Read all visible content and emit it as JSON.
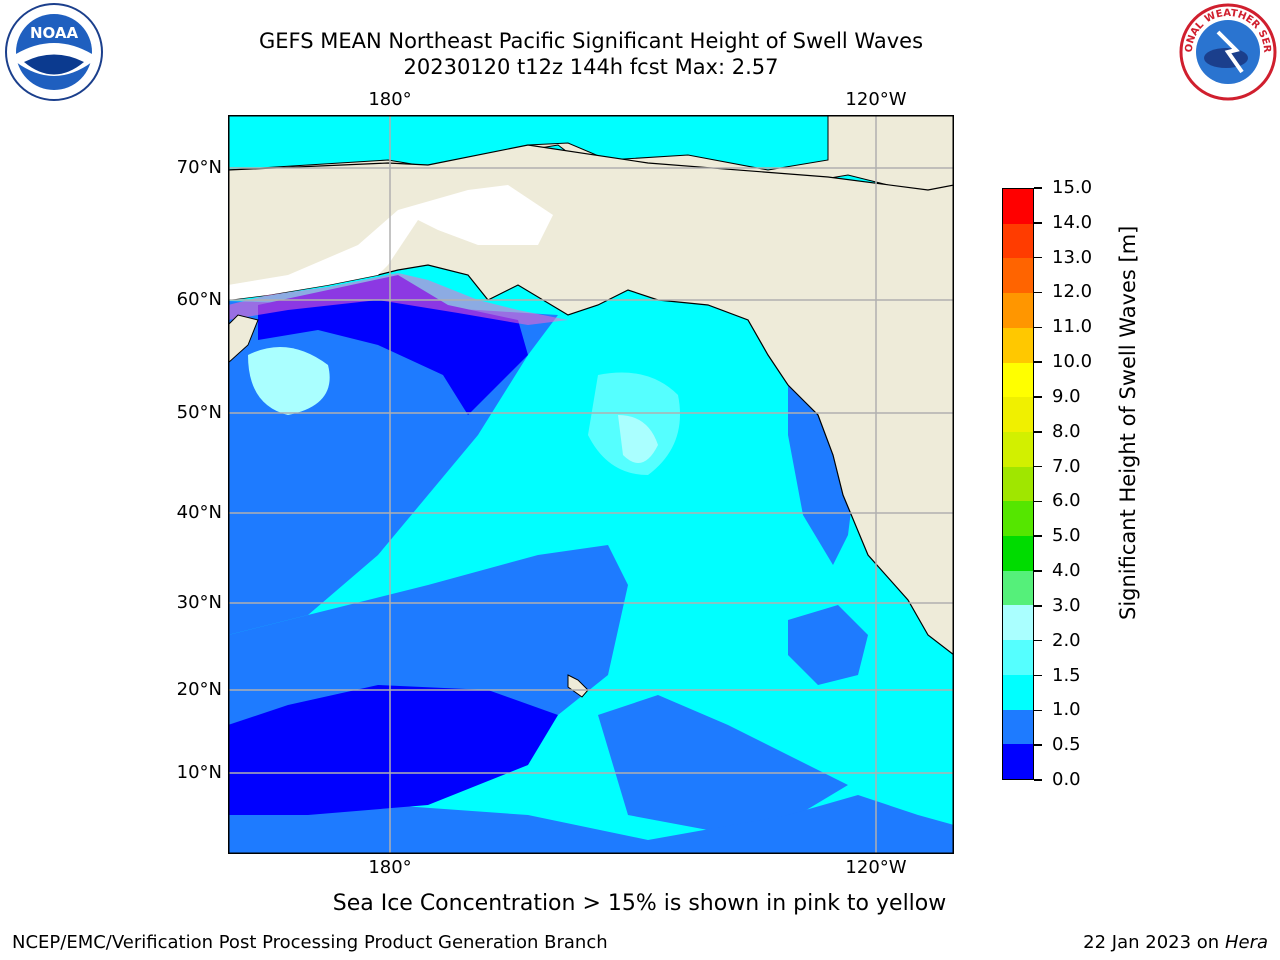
{
  "title": {
    "line1": "GEFS MEAN Northeast Pacific Significant Height of Swell Waves",
    "line2": "20230120 t12z 144h fcst   Max: 2.57"
  },
  "logos": {
    "left": {
      "icon": "noaa-logo",
      "text": "NOAA"
    },
    "right": {
      "icon": "nws-logo",
      "text": "NATIONAL WEATHER SERVICE"
    }
  },
  "map": {
    "lon_labels_top": [
      "180°",
      "120°W"
    ],
    "lon_labels_bottom": [
      "180°",
      "120°W"
    ],
    "lat_labels": [
      "70°N",
      "60°N",
      "50°N",
      "40°N",
      "30°N",
      "20°N",
      "10°N"
    ],
    "grid": true,
    "land_color": "#eeebd9",
    "ice_note": "Sea Ice Concentration > 15% is shown in pink to yellow"
  },
  "colorbar": {
    "label": "Significant Height of Swell Waves [m]",
    "ticks": [
      "0.0",
      "0.5",
      "1.0",
      "1.5",
      "2.0",
      "3.0",
      "4.0",
      "5.0",
      "6.0",
      "7.0",
      "8.0",
      "9.0",
      "10.0",
      "11.0",
      "12.0",
      "13.0",
      "14.0",
      "15.0"
    ],
    "colors": [
      "#0000ff",
      "#1e7bff",
      "#00ffff",
      "#55ffff",
      "#aaffff",
      "#55f07a",
      "#00dc00",
      "#55e600",
      "#a0e600",
      "#d2f000",
      "#f0f000",
      "#ffff00",
      "#ffc800",
      "#ff9600",
      "#ff6400",
      "#ff3c00",
      "#ff0000"
    ]
  },
  "footer": {
    "left": "NCEP/EMC/Verification Post Processing Product Generation Branch",
    "right_date": "22 Jan 2023 on",
    "right_host": "Hera"
  }
}
